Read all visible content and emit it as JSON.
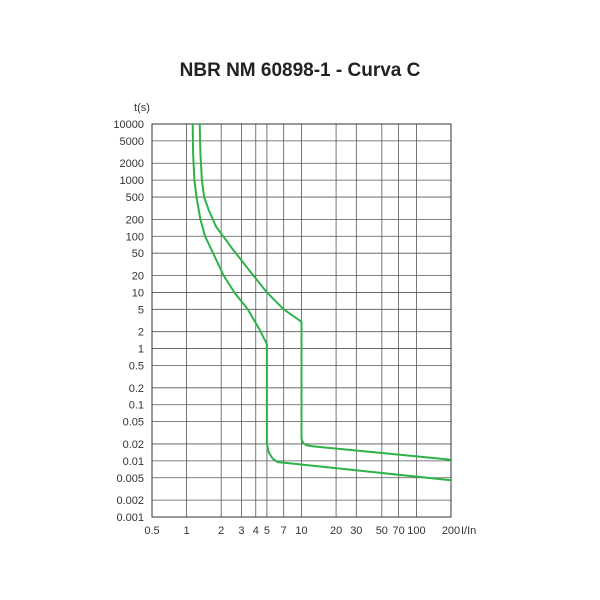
{
  "chart_data": {
    "type": "line",
    "title": "NBR NM 60898-1 - Curva C",
    "xlabel": "I/In",
    "ylabel": "t(s)",
    "xscale": "log",
    "yscale": "log",
    "xlim": [
      0.5,
      200
    ],
    "ylim": [
      0.001,
      10000
    ],
    "x_ticks": [
      0.5,
      1,
      2,
      3,
      4,
      5,
      7,
      10,
      20,
      30,
      50,
      70,
      100,
      200
    ],
    "x_tick_labels": [
      "0.5",
      "1",
      "2",
      "3",
      "4",
      "5",
      "7",
      "10",
      "20",
      "30",
      "50",
      "70",
      "100",
      "200"
    ],
    "y_ticks": [
      0.001,
      0.002,
      0.005,
      0.01,
      0.02,
      0.05,
      0.1,
      0.2,
      0.5,
      1,
      2,
      5,
      10,
      20,
      50,
      100,
      200,
      500,
      1000,
      2000,
      5000,
      10000
    ],
    "y_tick_labels": [
      "0.001",
      "0.002",
      "0.005",
      "0.01",
      "0.02",
      "0.05",
      "0.1",
      "0.2",
      "0.5",
      "1",
      "2",
      "5",
      "10",
      "20",
      "50",
      "100",
      "200",
      "500",
      "1000",
      "2000",
      "5000",
      "10000"
    ],
    "x_gridlines": [
      1,
      2,
      3,
      4,
      5,
      7,
      10,
      20,
      30,
      50,
      70,
      100,
      200
    ],
    "y_gridlines": [
      0.001,
      0.002,
      0.005,
      0.01,
      0.02,
      0.05,
      0.1,
      0.2,
      0.5,
      1,
      2,
      5,
      10,
      20,
      50,
      100,
      200,
      500,
      1000,
      2000,
      5000,
      10000
    ],
    "grid": true,
    "line_color": "#2db34a",
    "series": [
      {
        "points": [
          [
            1.13,
            10000
          ],
          [
            1.14,
            3000
          ],
          [
            1.17,
            1000
          ],
          [
            1.22,
            500
          ],
          [
            1.32,
            200
          ],
          [
            1.45,
            100
          ],
          [
            1.7,
            50
          ],
          [
            2.1,
            20
          ],
          [
            2.6,
            10
          ],
          [
            3.4,
            5
          ],
          [
            4.3,
            2.2
          ],
          [
            5,
            1.2
          ],
          [
            5,
            0.02
          ],
          [
            5.2,
            0.014
          ],
          [
            5.6,
            0.011
          ],
          [
            6.2,
            0.0095
          ],
          [
            8,
            0.009
          ],
          [
            200,
            0.0045
          ]
        ]
      },
      {
        "points": [
          [
            1.3,
            10000
          ],
          [
            1.32,
            3000
          ],
          [
            1.36,
            1000
          ],
          [
            1.42,
            500
          ],
          [
            1.55,
            300
          ],
          [
            1.8,
            150
          ],
          [
            2.5,
            60
          ],
          [
            3.5,
            25
          ],
          [
            5,
            10
          ],
          [
            7,
            5
          ],
          [
            10,
            3
          ],
          [
            10,
            0.025
          ],
          [
            10.3,
            0.021
          ],
          [
            11,
            0.019
          ],
          [
            13,
            0.018
          ],
          [
            200,
            0.0105
          ]
        ]
      }
    ]
  }
}
